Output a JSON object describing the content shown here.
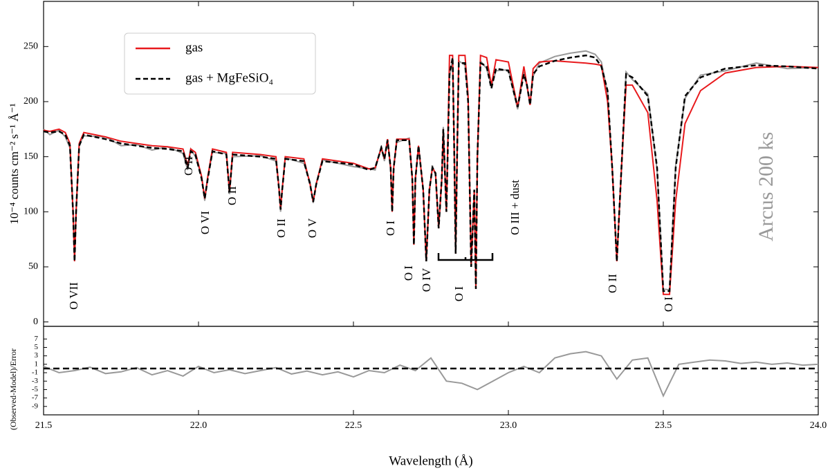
{
  "chart_data": [
    {
      "type": "line",
      "ylabel": "10⁻⁴ counts cm⁻² s⁻¹ Å⁻¹",
      "watermark": "Arcus 200 ks",
      "ylim": [
        -4,
        291
      ],
      "yticks": [
        0,
        50,
        100,
        150,
        200,
        250
      ],
      "legend": "upper left",
      "x": [
        21.5,
        21.52,
        21.55,
        21.57,
        21.585,
        21.595,
        21.6,
        21.605,
        21.615,
        21.63,
        21.7,
        21.75,
        21.8,
        21.85,
        21.9,
        21.95,
        21.965,
        21.975,
        21.99,
        22.01,
        22.02,
        22.03,
        22.045,
        22.09,
        22.1,
        22.11,
        22.2,
        22.25,
        22.26,
        22.265,
        22.27,
        22.28,
        22.34,
        22.36,
        22.37,
        22.38,
        22.4,
        22.5,
        22.55,
        22.57,
        22.59,
        22.6,
        22.61,
        22.62,
        22.625,
        22.63,
        22.64,
        22.68,
        22.69,
        22.695,
        22.7,
        22.71,
        22.725,
        22.735,
        22.745,
        22.755,
        22.765,
        22.775,
        22.785,
        22.79,
        22.8,
        22.81,
        22.82,
        22.825,
        22.83,
        22.835,
        22.84,
        22.86,
        22.87,
        22.88,
        22.89,
        22.895,
        22.9,
        22.91,
        22.93,
        22.945,
        22.96,
        23.0,
        23.03,
        23.05,
        23.06,
        23.07,
        23.08,
        23.1,
        23.15,
        23.2,
        23.25,
        23.28,
        23.3,
        23.32,
        23.335,
        23.35,
        23.365,
        23.38,
        23.4,
        23.45,
        23.48,
        23.5,
        23.52,
        23.54,
        23.57,
        23.62,
        23.7,
        23.8,
        23.9,
        24.0
      ],
      "observed": {
        "color": "#999999",
        "values": [
          175,
          170,
          174,
          168,
          158,
          102,
          57,
          98,
          161,
          169,
          168,
          160,
          161,
          156,
          159,
          153,
          138,
          157,
          150,
          132,
          110,
          131,
          154,
          153,
          116,
          150,
          151,
          146,
          122,
          100,
          121,
          149,
          144,
          127,
          108,
          126,
          147,
          141,
          139,
          138,
          160,
          146,
          166,
          138,
          102,
          141,
          163,
          167,
          128,
          72,
          132,
          158,
          122,
          57,
          118,
          142,
          133,
          87,
          128,
          177,
          102,
          223,
          238,
          162,
          64,
          158,
          237,
          233,
          202,
          52,
          118,
          33,
          148,
          237,
          230,
          214,
          228,
          229,
          193,
          227,
          213,
          199,
          223,
          235,
          241,
          244,
          246,
          243,
          236,
          208,
          142,
          57,
          138,
          227,
          220,
          207,
          138,
          30,
          29,
          142,
          203,
          224,
          228,
          235,
          230,
          231
        ]
      },
      "series": [
        {
          "name": "gas",
          "color": "#e8191c",
          "dash": false,
          "values": [
            174,
            173,
            175,
            172,
            162,
            100,
            55,
            100,
            162,
            172,
            168,
            164,
            162,
            160,
            159,
            157,
            142,
            157,
            154,
            132,
            112,
            132,
            157,
            154,
            118,
            154,
            152,
            150,
            120,
            102,
            120,
            150,
            148,
            125,
            109,
            125,
            148,
            144,
            139,
            140,
            158,
            148,
            166,
            140,
            100,
            140,
            166,
            166,
            130,
            70,
            130,
            160,
            120,
            55,
            120,
            140,
            135,
            85,
            130,
            175,
            100,
            242,
            242,
            160,
            62,
            160,
            242,
            242,
            205,
            50,
            120,
            30,
            150,
            242,
            240,
            215,
            238,
            236,
            195,
            232,
            215,
            197,
            230,
            236,
            237,
            236,
            235,
            234,
            233,
            200,
            140,
            55,
            140,
            215,
            215,
            190,
            110,
            25,
            25,
            110,
            180,
            210,
            226,
            231,
            232,
            231
          ]
        },
        {
          "name": "gas + MgFeSiO₄",
          "color": "#000000",
          "dash": true,
          "values": [
            173,
            172,
            173,
            170,
            160,
            100,
            55,
            100,
            160,
            170,
            166,
            162,
            160,
            158,
            157,
            155,
            140,
            155,
            152,
            130,
            112,
            130,
            155,
            152,
            118,
            152,
            150,
            148,
            120,
            102,
            120,
            148,
            146,
            125,
            109,
            125,
            146,
            143,
            138,
            140,
            158,
            148,
            165,
            140,
            100,
            140,
            165,
            165,
            130,
            70,
            130,
            160,
            120,
            55,
            120,
            140,
            135,
            85,
            130,
            175,
            100,
            225,
            240,
            160,
            62,
            160,
            235,
            235,
            200,
            50,
            120,
            30,
            150,
            235,
            232,
            212,
            230,
            228,
            195,
            225,
            215,
            197,
            225,
            232,
            237,
            240,
            242,
            240,
            232,
            210,
            140,
            55,
            140,
            225,
            222,
            205,
            140,
            28,
            28,
            140,
            205,
            222,
            230,
            233,
            232,
            230
          ]
        }
      ],
      "annotations": [
        "O VII",
        "O II",
        "O VI",
        "O II",
        "O II",
        "O V",
        "O I",
        "O I",
        "O IV",
        "O I",
        "O III + dust",
        "O II",
        "O I"
      ]
    },
    {
      "type": "line",
      "ylabel": "(Observed-Model)/Error",
      "xlabel": "Wavelength (Å)",
      "xlim": [
        21.5,
        24.0
      ],
      "xticks": [
        21.5,
        {
          "value": 22,
          "label": "22.0"
        },
        22.5,
        {
          "value": 23,
          "label": "23.0"
        },
        23.5,
        {
          "value": 24,
          "label": "24.0"
        }
      ],
      "ylim": [
        -11,
        10
      ],
      "yticks": [
        -9,
        -7,
        -5,
        -3,
        -1,
        1,
        3,
        5,
        7
      ],
      "hline": 0,
      "x": [
        21.5,
        21.55,
        21.6,
        21.65,
        21.7,
        21.75,
        21.8,
        21.85,
        21.9,
        21.95,
        22.0,
        22.05,
        22.1,
        22.15,
        22.2,
        22.25,
        22.3,
        22.35,
        22.4,
        22.45,
        22.5,
        22.55,
        22.6,
        22.65,
        22.7,
        22.75,
        22.8,
        22.85,
        22.9,
        22.95,
        23.0,
        23.05,
        23.1,
        23.15,
        23.2,
        23.25,
        23.3,
        23.35,
        23.4,
        23.45,
        23.5,
        23.55,
        23.6,
        23.65,
        23.7,
        23.75,
        23.8,
        23.85,
        23.9,
        23.95,
        24.0
      ],
      "series": [
        {
          "color": "#999999",
          "values": [
            0.5,
            -1,
            -0.5,
            0.3,
            -1.2,
            -0.8,
            0.2,
            -1.5,
            -0.5,
            -1.8,
            0.5,
            -1,
            -0.3,
            -1.2,
            -0.5,
            0.2,
            -1.3,
            -0.6,
            -1.5,
            -0.8,
            -2,
            -0.5,
            -1,
            0.8,
            -0.5,
            2.5,
            -3,
            -3.5,
            -5,
            -3,
            -1,
            0.5,
            -1,
            2.5,
            3.5,
            4,
            3,
            -2.5,
            2,
            2.5,
            -6.5,
            1,
            1.5,
            2,
            1.8,
            1.2,
            1.5,
            1,
            1.3,
            0.8,
            1
          ]
        }
      ]
    }
  ]
}
